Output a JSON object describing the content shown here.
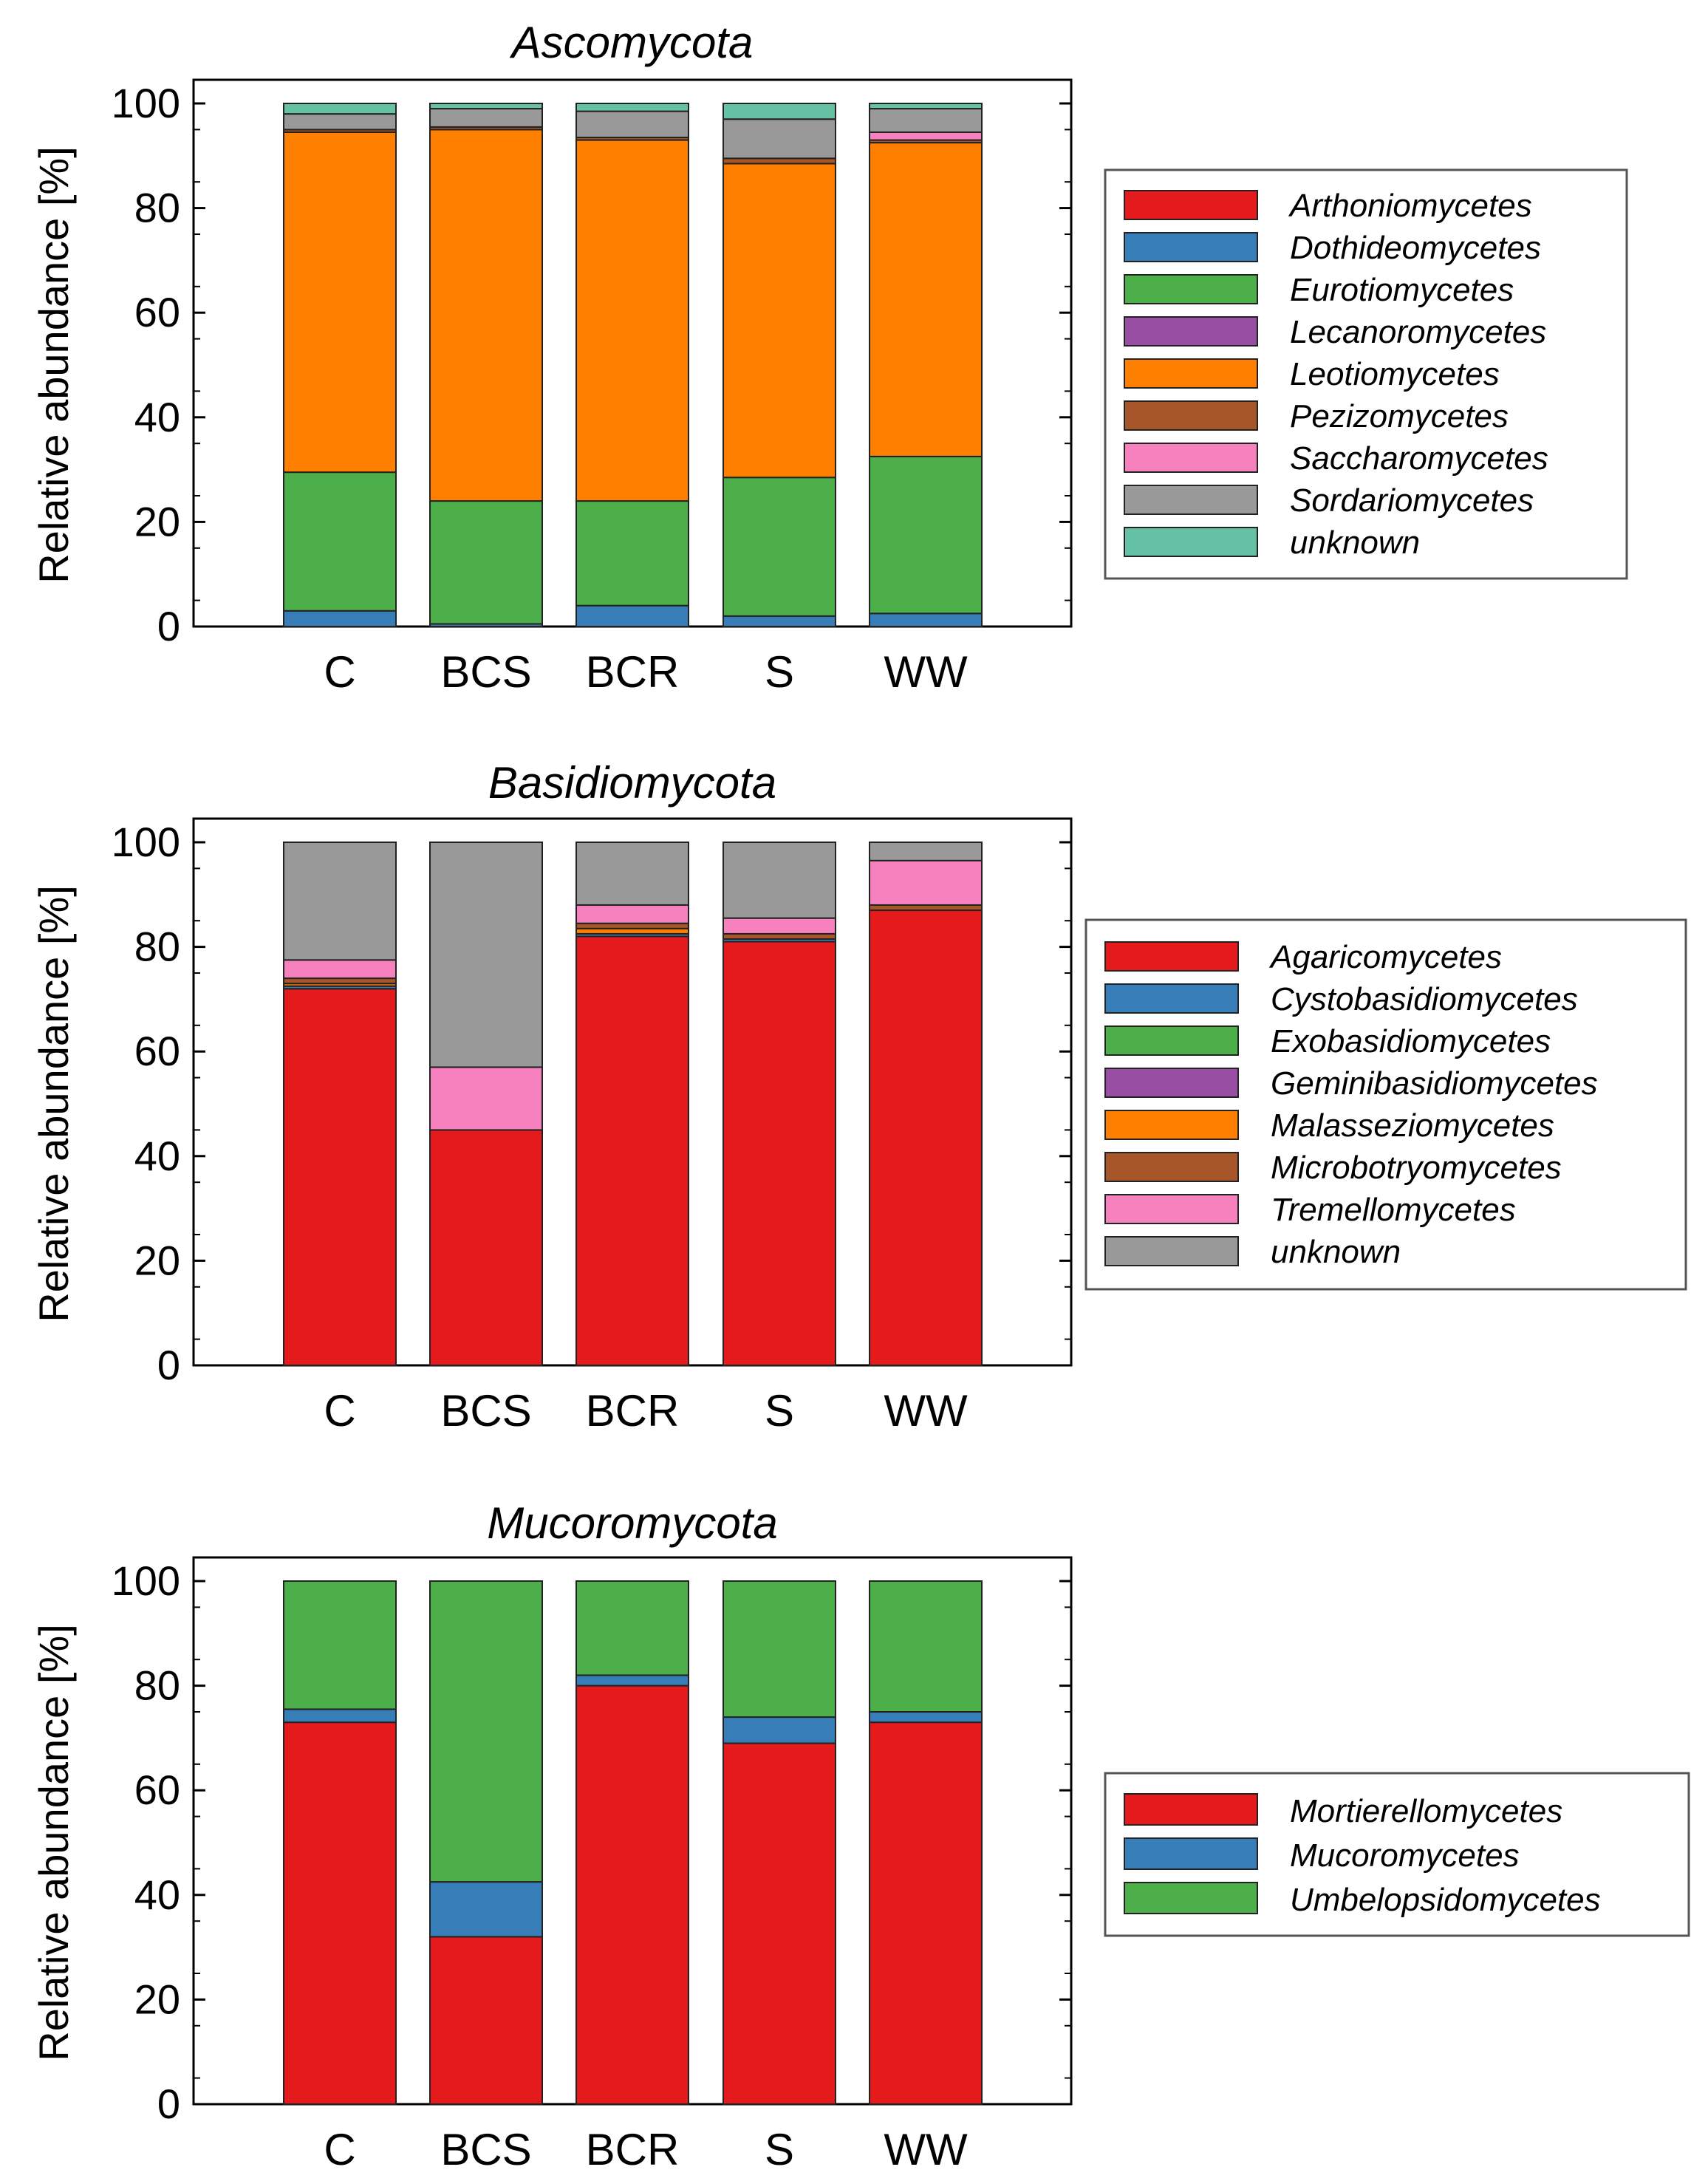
{
  "chart_data": [
    {
      "type": "bar",
      "stacked": true,
      "title": "Ascomycota",
      "ylabel": "Relative abundance [%]",
      "xlabel": "",
      "ylim": [
        0,
        100
      ],
      "yticks": [
        0,
        20,
        40,
        60,
        80,
        100
      ],
      "categories": [
        "C",
        "BCS",
        "BCR",
        "S",
        "WW"
      ],
      "legend_position": "right",
      "series": [
        {
          "name": "Arthoniomycetes",
          "color": "#e41a1c",
          "values": [
            0,
            0,
            0,
            0,
            0
          ]
        },
        {
          "name": "Dothideomycetes",
          "color": "#377eb8",
          "values": [
            3,
            0.5,
            4,
            2,
            2.5
          ]
        },
        {
          "name": "Eurotiomycetes",
          "color": "#4daf4a",
          "values": [
            26.5,
            23.5,
            20,
            26.5,
            30
          ]
        },
        {
          "name": "Lecanoromycetes",
          "color": "#984ea3",
          "values": [
            0,
            0,
            0,
            0,
            0
          ]
        },
        {
          "name": "Leotiomycetes",
          "color": "#ff7f00",
          "values": [
            65,
            71,
            69,
            60,
            60
          ]
        },
        {
          "name": "Pezizomycetes",
          "color": "#a65628",
          "values": [
            0.5,
            0.5,
            0.5,
            1,
            0.5
          ]
        },
        {
          "name": "Saccharomycetes",
          "color": "#f781bf",
          "values": [
            0,
            0,
            0,
            0,
            1.5
          ]
        },
        {
          "name": "Sordariomycetes",
          "color": "#999999",
          "values": [
            3,
            3.5,
            5,
            7.5,
            4.5
          ]
        },
        {
          "name": "unknown",
          "color": "#66c2a5",
          "values": [
            2,
            1,
            1.5,
            3,
            1
          ]
        }
      ]
    },
    {
      "type": "bar",
      "stacked": true,
      "title": "Basidiomycota",
      "ylabel": "Relative abundance [%]",
      "xlabel": "",
      "ylim": [
        0,
        100
      ],
      "yticks": [
        0,
        20,
        40,
        60,
        80,
        100
      ],
      "categories": [
        "C",
        "BCS",
        "BCR",
        "S",
        "WW"
      ],
      "legend_position": "right",
      "series": [
        {
          "name": "Agaricomycetes",
          "color": "#e41a1c",
          "values": [
            72,
            45,
            82,
            81,
            87
          ]
        },
        {
          "name": "Cystobasidiomycetes",
          "color": "#377eb8",
          "values": [
            0.5,
            0,
            0.5,
            0.5,
            0
          ]
        },
        {
          "name": "Exobasidiomycetes",
          "color": "#4daf4a",
          "values": [
            0,
            0,
            0,
            0,
            0
          ]
        },
        {
          "name": "Geminibasidiomycetes",
          "color": "#984ea3",
          "values": [
            0,
            0,
            0,
            0,
            0
          ]
        },
        {
          "name": "Malasseziomycetes",
          "color": "#ff7f00",
          "values": [
            0.5,
            0,
            1,
            0,
            0
          ]
        },
        {
          "name": "Microbotryomycetes",
          "color": "#a65628",
          "values": [
            1,
            0,
            1,
            1,
            1
          ]
        },
        {
          "name": "Tremellomycetes",
          "color": "#f781bf",
          "values": [
            3.5,
            12,
            3.5,
            3,
            8.5
          ]
        },
        {
          "name": "unknown",
          "color": "#999999",
          "values": [
            22.5,
            43,
            12,
            14.5,
            3.5
          ]
        }
      ]
    },
    {
      "type": "bar",
      "stacked": true,
      "title": "Mucoromycota",
      "ylabel": "Relative abundance [%]",
      "xlabel": "",
      "ylim": [
        0,
        100
      ],
      "yticks": [
        0,
        20,
        40,
        60,
        80,
        100
      ],
      "categories": [
        "C",
        "BCS",
        "BCR",
        "S",
        "WW"
      ],
      "legend_position": "right",
      "series": [
        {
          "name": "Mortierellomycetes",
          "color": "#e41a1c",
          "values": [
            73,
            32,
            80,
            69,
            73
          ]
        },
        {
          "name": "Mucoromycetes",
          "color": "#377eb8",
          "values": [
            2.5,
            10.5,
            2,
            5,
            2
          ]
        },
        {
          "name": "Umbelopsidomycetes",
          "color": "#4daf4a",
          "values": [
            24.5,
            57.5,
            18,
            26,
            25
          ]
        }
      ]
    }
  ]
}
